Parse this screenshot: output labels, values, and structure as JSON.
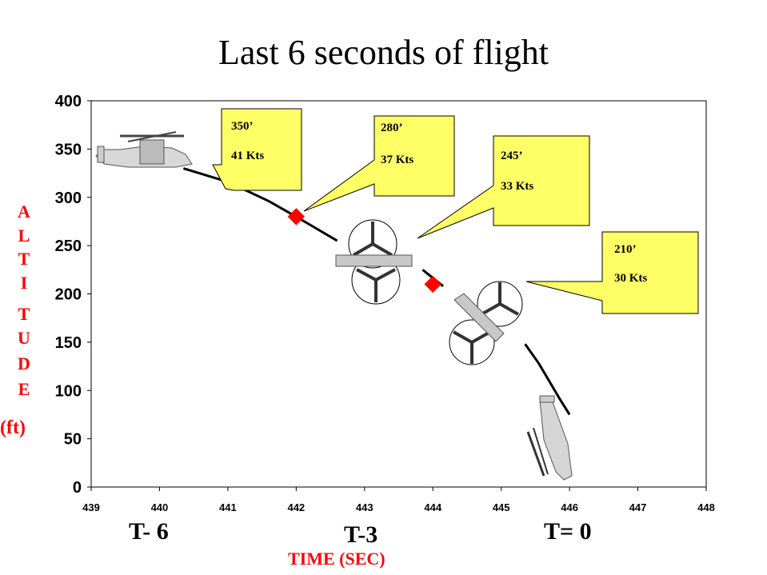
{
  "title": "Last 6 seconds of flight",
  "chart_data": {
    "type": "line",
    "xlabel": "TIME (SEC)",
    "ylabel_letters": [
      "A",
      "L",
      "T",
      "I",
      "T",
      "U",
      "D",
      "E"
    ],
    "ylabel_unit": "(ft)",
    "xlim": [
      439,
      448
    ],
    "ylim": [
      0,
      400
    ],
    "x_ticks": [
      "439",
      "440",
      "441",
      "442",
      "443",
      "444",
      "445",
      "446",
      "447",
      "448"
    ],
    "y_ticks": [
      "0",
      "50",
      "100",
      "150",
      "200",
      "250",
      "300",
      "350",
      "400"
    ],
    "grid": false,
    "series": [
      {
        "x": [
          440.35,
          441.0,
          441.6,
          442.0,
          442.6
        ],
        "y": [
          330,
          316,
          296,
          280,
          255
        ]
      },
      {
        "x": [
          443.85,
          444.15
        ],
        "y": [
          225,
          208
        ]
      },
      {
        "x": [
          445.35,
          445.55,
          445.7,
          445.85,
          446.0
        ],
        "y": [
          148,
          128,
          110,
          92,
          75
        ]
      }
    ],
    "markers": [
      {
        "x": 442,
        "y": 280
      },
      {
        "x": 444,
        "y": 210
      }
    ],
    "callouts": [
      {
        "alt": "350’",
        "speed": "41 Kts"
      },
      {
        "alt": "280’",
        "speed": "37 Kts"
      },
      {
        "alt": "245’",
        "speed": "33 Kts"
      },
      {
        "alt": "210’",
        "speed": "30 Kts"
      }
    ],
    "time_labels": [
      "T- 6",
      "T-3",
      "T= 0"
    ]
  },
  "colors": {
    "line": "#000000",
    "marker": "#ff0000",
    "callout_fill": "#ffff66",
    "label_red": "#ff0000"
  }
}
